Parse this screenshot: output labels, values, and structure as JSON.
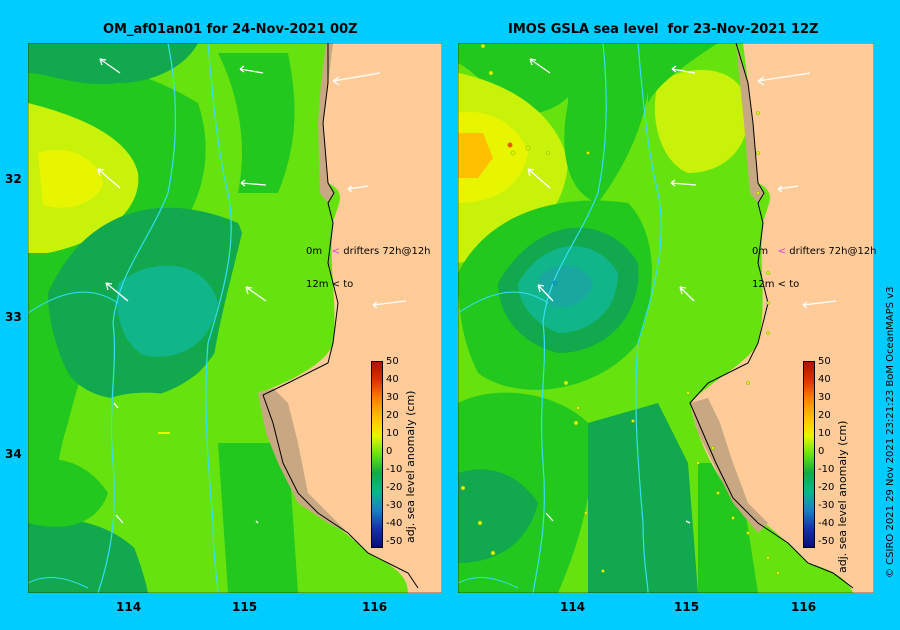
{
  "panels": [
    {
      "title": "OM_af01an01 for 24-Nov-2021 00Z",
      "legend_line1_depth": "0m",
      "legend_line1_marker": "<",
      "legend_line1_text": "drifters 72h@12h",
      "legend_line2_depth": "12m",
      "legend_line2_marker": "<",
      "legend_line2_text": "to"
    },
    {
      "title": "IMOS GSLA sea level  for 23-Nov-2021 12Z",
      "legend_line1_depth": "0m",
      "legend_line1_marker": "<",
      "legend_line1_text": "drifters 72h@12h",
      "legend_line2_depth": "12m",
      "legend_line2_marker": "<",
      "legend_line2_text": "to"
    }
  ],
  "x_ticks": [
    "114",
    "115",
    "116"
  ],
  "y_ticks": [
    "32",
    "33",
    "34"
  ],
  "colorbar": {
    "title": "adj. sea level anomaly (cm)",
    "ticks": [
      "50",
      "40",
      "30",
      "20",
      "10",
      "0",
      "-10",
      "-20",
      "-30",
      "-40",
      "-50"
    ]
  },
  "credit": "© CSIRO 2021   29 Nov 2021 23:21:23 BoM OceanMAPS v3",
  "colors": {
    "background": "#00CCFF",
    "land": "#FFCC99",
    "coast_sand": "#C8A882",
    "green_dark": "#11A84E",
    "green_mid": "#22C81E",
    "green_light": "#66E30F",
    "yellow_green": "#C8F20A",
    "yellow": "#E8F500",
    "teal": "#11B58A",
    "teal_deep": "#18A8A0",
    "contour_cyan": "#33E0F0",
    "drifter_marker": "#E040E0"
  }
}
